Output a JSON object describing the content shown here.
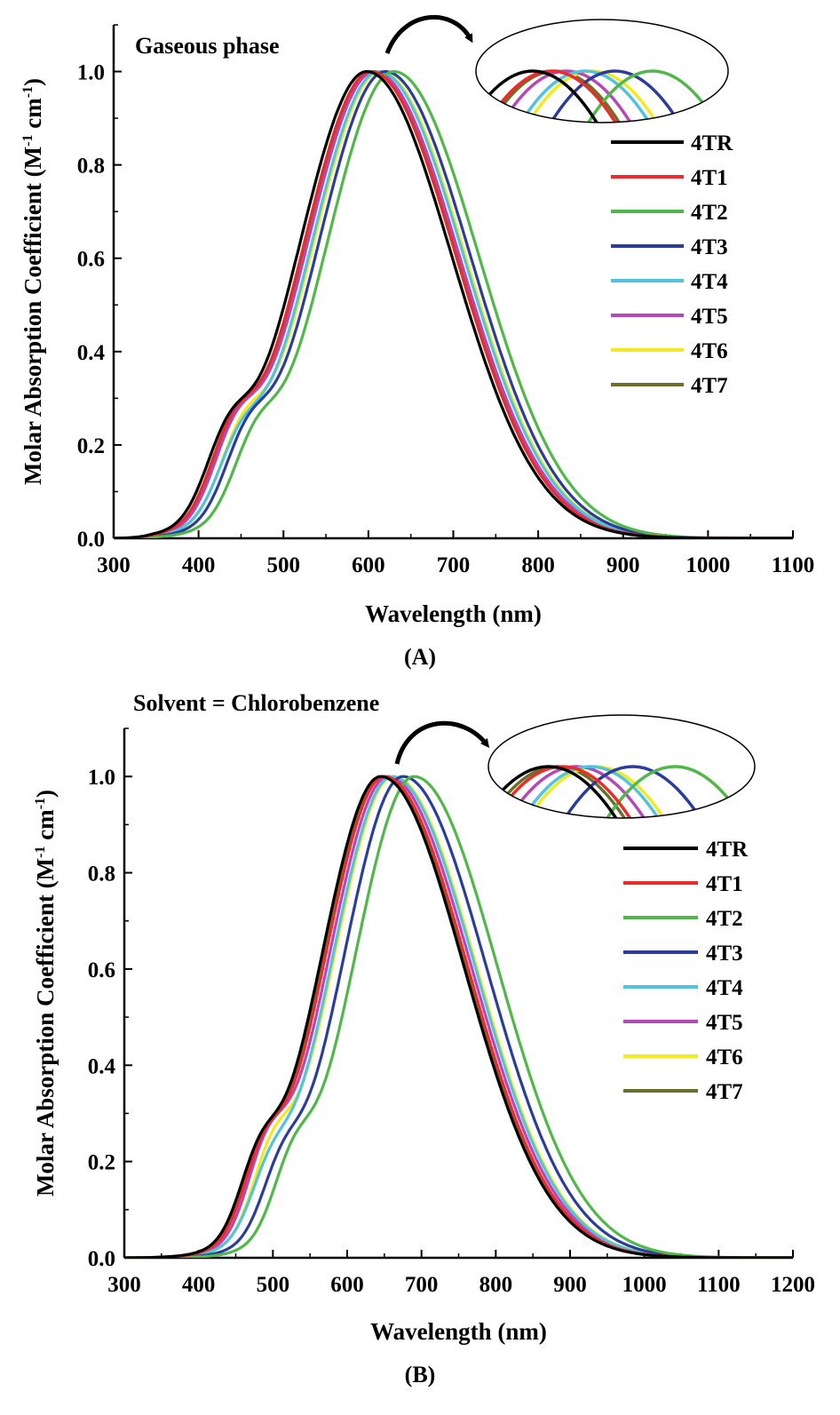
{
  "chart_data": [
    {
      "type": "line",
      "panel_label": "(A)",
      "annotation": "Gaseous phase",
      "xlabel": "Wavelength (nm)",
      "ylabel_main": "Molar Absorption Coefficient (M",
      "ylabel_sup1": "-1",
      "ylabel_mid": " cm",
      "ylabel_sup2": "-1",
      "ylabel_end": ")",
      "xlim": [
        300,
        1100
      ],
      "ylim": [
        0.0,
        1.1
      ],
      "xticks": [
        300,
        400,
        500,
        600,
        700,
        800,
        900,
        1000,
        1100
      ],
      "xtick_labels": [
        "300",
        "400",
        "500",
        "600",
        "700",
        "800",
        "900",
        "1000",
        "1100"
      ],
      "yticks": [
        0.0,
        0.2,
        0.4,
        0.6,
        0.8,
        1.0
      ],
      "ytick_labels": [
        "0.0",
        "0.2",
        "0.4",
        "0.6",
        "0.8",
        "1.0"
      ],
      "grid": false,
      "legend_position": "right",
      "inset": "zoom of peak region",
      "series": [
        {
          "name": "4TR",
          "color": "#000000",
          "peak": 598,
          "shoulder": 0.23
        },
        {
          "name": "4T1",
          "color": "#ee2a2a",
          "peak": 603,
          "shoulder": 0.24
        },
        {
          "name": "4T2",
          "color": "#4fb848",
          "peak": 630,
          "shoulder": 0.21
        },
        {
          "name": "4T3",
          "color": "#2b3d9c",
          "peak": 620,
          "shoulder": 0.22
        },
        {
          "name": "4T4",
          "color": "#4fc3e0",
          "peak": 612,
          "shoulder": 0.2
        },
        {
          "name": "4T5",
          "color": "#b548b8",
          "peak": 607,
          "shoulder": 0.24
        },
        {
          "name": "4T6",
          "color": "#f2ea1e",
          "peak": 614,
          "shoulder": 0.23
        },
        {
          "name": "4T7",
          "color": "#6b7028",
          "peak": 604,
          "shoulder": 0.23
        }
      ]
    },
    {
      "type": "line",
      "panel_label": "(B)",
      "annotation": "Solvent = Chlorobenzene",
      "xlabel": "Wavelength (nm)",
      "ylabel_main": "Molar Absorption Coefficient (M",
      "ylabel_sup1": "-1",
      "ylabel_mid": " cm",
      "ylabel_sup2": "-1",
      "ylabel_end": ")",
      "xlim": [
        300,
        1200
      ],
      "ylim": [
        0.0,
        1.1
      ],
      "xticks": [
        300,
        400,
        500,
        600,
        700,
        800,
        900,
        1000,
        1100,
        1200
      ],
      "xtick_labels": [
        "300",
        "400",
        "500",
        "600",
        "700",
        "800",
        "900",
        "1000",
        "1100",
        "1200"
      ],
      "yticks": [
        0.0,
        0.2,
        0.4,
        0.6,
        0.8,
        1.0
      ],
      "ytick_labels": [
        "0.0",
        "0.2",
        "0.4",
        "0.6",
        "0.8",
        "1.0"
      ],
      "grid": false,
      "legend_position": "right",
      "inset": "zoom of peak region",
      "series": [
        {
          "name": "4TR",
          "color": "#000000",
          "peak": 645,
          "shoulder": 0.21
        },
        {
          "name": "4T1",
          "color": "#ee2a2a",
          "peak": 650,
          "shoulder": 0.22
        },
        {
          "name": "4T2",
          "color": "#4fb848",
          "peak": 690,
          "shoulder": 0.2
        },
        {
          "name": "4T3",
          "color": "#2b3d9c",
          "peak": 675,
          "shoulder": 0.18
        },
        {
          "name": "4T4",
          "color": "#4fc3e0",
          "peak": 660,
          "shoulder": 0.17
        },
        {
          "name": "4T5",
          "color": "#b548b8",
          "peak": 655,
          "shoulder": 0.235
        },
        {
          "name": "4T6",
          "color": "#f2ea1e",
          "peak": 662,
          "shoulder": 0.225
        },
        {
          "name": "4T7",
          "color": "#6b7028",
          "peak": 648,
          "shoulder": 0.21
        }
      ]
    }
  ]
}
